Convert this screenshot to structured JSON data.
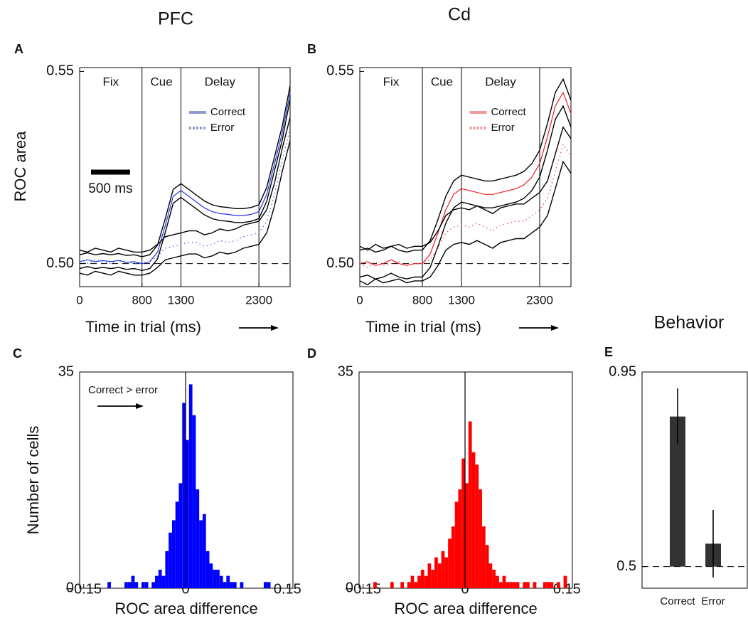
{
  "chart_data": [
    {
      "type": "line",
      "panel": "A",
      "title": "PFC",
      "xlabel": "Time in trial (ms)",
      "ylabel": "ROC area",
      "xlim": [
        0,
        2700
      ],
      "ylim": [
        0.494,
        0.551
      ],
      "xticks": [
        0,
        800,
        1300,
        2300
      ],
      "yticks": [
        {
          "value": 0.5,
          "label": "0.50"
        },
        0.55
      ],
      "reference_y": 0.5,
      "band_color": "#000000",
      "epochs": [
        {
          "label": "Fix",
          "start": 0,
          "end": 800
        },
        {
          "label": "Cue",
          "start": 800,
          "end": 1300
        },
        {
          "label": "Delay",
          "start": 1300,
          "end": 2300
        }
      ],
      "scale_bar": {
        "value": 500,
        "label": "500 ms"
      },
      "x": [
        0,
        100,
        200,
        300,
        400,
        500,
        600,
        700,
        800,
        900,
        1000,
        1100,
        1200,
        1300,
        1400,
        1500,
        1600,
        1700,
        1800,
        1900,
        2000,
        2100,
        2200,
        2300,
        2400,
        2500,
        2600,
        2700
      ],
      "series": [
        {
          "name": "Correct",
          "color": "#2233dd",
          "legend_color": "#8e9ccc",
          "dash": "solid",
          "values": [
            0.5005,
            0.501,
            0.5005,
            0.5008,
            0.5005,
            0.5008,
            0.5003,
            0.5005,
            0.5,
            0.5005,
            0.503,
            0.51,
            0.5175,
            0.519,
            0.5175,
            0.516,
            0.5145,
            0.5135,
            0.513,
            0.5128,
            0.5125,
            0.5125,
            0.5128,
            0.5135,
            0.518,
            0.526,
            0.534,
            0.5445
          ],
          "upper": [
            0.5023,
            0.5028,
            0.5023,
            0.5026,
            0.5023,
            0.5026,
            0.5021,
            0.5023,
            0.5018,
            0.5023,
            0.5048,
            0.5118,
            0.5193,
            0.5208,
            0.5193,
            0.5178,
            0.5163,
            0.5153,
            0.5148,
            0.5146,
            0.5143,
            0.5143,
            0.5146,
            0.5153,
            0.5198,
            0.5278,
            0.5358,
            0.5463
          ],
          "lower": [
            0.4987,
            0.4992,
            0.4987,
            0.499,
            0.4987,
            0.499,
            0.4985,
            0.4987,
            0.4982,
            0.4987,
            0.5012,
            0.5082,
            0.5157,
            0.5172,
            0.5157,
            0.5142,
            0.5127,
            0.5117,
            0.5112,
            0.511,
            0.5107,
            0.5107,
            0.511,
            0.5117,
            0.5162,
            0.5242,
            0.5322,
            0.5427
          ]
        },
        {
          "name": "Error",
          "color": "#5566ee",
          "legend_color": "#8e9ccc",
          "dash": "dotted",
          "values": [
            0.5005,
            0.5,
            0.501,
            0.5005,
            0.5,
            0.501,
            0.5005,
            0.5,
            0.5,
            0.5005,
            0.502,
            0.504,
            0.5045,
            0.505,
            0.5055,
            0.5055,
            0.5045,
            0.505,
            0.506,
            0.5055,
            0.506,
            0.507,
            0.5075,
            0.508,
            0.511,
            0.518,
            0.527,
            0.535
          ],
          "upper": [
            0.5035,
            0.503,
            0.504,
            0.5035,
            0.503,
            0.504,
            0.5035,
            0.503,
            0.503,
            0.5035,
            0.505,
            0.507,
            0.5075,
            0.508,
            0.5085,
            0.5085,
            0.5075,
            0.508,
            0.509,
            0.5085,
            0.509,
            0.51,
            0.5105,
            0.511,
            0.514,
            0.521,
            0.53,
            0.538
          ],
          "lower": [
            0.4975,
            0.497,
            0.498,
            0.4975,
            0.497,
            0.498,
            0.4975,
            0.497,
            0.497,
            0.4975,
            0.499,
            0.501,
            0.5015,
            0.502,
            0.5025,
            0.5025,
            0.5015,
            0.502,
            0.503,
            0.5025,
            0.503,
            0.504,
            0.5045,
            0.505,
            0.508,
            0.515,
            0.524,
            0.532
          ]
        }
      ]
    },
    {
      "type": "line",
      "panel": "B",
      "title": "Cd",
      "xlabel": "Time in trial (ms)",
      "xlim": [
        0,
        2700
      ],
      "ylim": [
        0.494,
        0.551
      ],
      "xticks": [
        0,
        800,
        1300,
        2300
      ],
      "yticks": [
        {
          "value": 0.5,
          "label": "0.50"
        },
        0.55
      ],
      "reference_y": 0.5,
      "band_color": "#000000",
      "epochs": [
        {
          "label": "Fix",
          "start": 0,
          "end": 800
        },
        {
          "label": "Cue",
          "start": 800,
          "end": 1300
        },
        {
          "label": "Delay",
          "start": 1300,
          "end": 2300
        }
      ],
      "x": [
        0,
        100,
        200,
        300,
        400,
        500,
        600,
        700,
        800,
        900,
        1000,
        1100,
        1200,
        1300,
        1400,
        1500,
        1600,
        1700,
        1800,
        1900,
        2000,
        2100,
        2200,
        2300,
        2400,
        2500,
        2600,
        2700
      ],
      "series": [
        {
          "name": "Correct",
          "color": "#ee1c24",
          "legend_color": "#f09a9a",
          "dash": "solid",
          "values": [
            0.5,
            0.5005,
            0.4995,
            0.5,
            0.501,
            0.5,
            0.4995,
            0.5,
            0.5,
            0.5025,
            0.508,
            0.514,
            0.518,
            0.5195,
            0.519,
            0.5185,
            0.518,
            0.518,
            0.5185,
            0.519,
            0.5195,
            0.5205,
            0.5225,
            0.526,
            0.533,
            0.541,
            0.5445,
            0.539
          ],
          "upper": [
            0.5035,
            0.504,
            0.503,
            0.5035,
            0.5045,
            0.5035,
            0.503,
            0.5035,
            0.5035,
            0.506,
            0.5115,
            0.5175,
            0.5215,
            0.523,
            0.5225,
            0.522,
            0.5215,
            0.5215,
            0.522,
            0.5225,
            0.523,
            0.524,
            0.526,
            0.5295,
            0.5365,
            0.5445,
            0.548,
            0.5425
          ],
          "lower": [
            0.4965,
            0.497,
            0.496,
            0.4965,
            0.4975,
            0.4965,
            0.496,
            0.4965,
            0.4965,
            0.499,
            0.5045,
            0.5105,
            0.5145,
            0.516,
            0.5155,
            0.515,
            0.5145,
            0.5145,
            0.515,
            0.5155,
            0.516,
            0.517,
            0.519,
            0.5225,
            0.5295,
            0.5375,
            0.541,
            0.5355
          ]
        },
        {
          "name": "Error",
          "color": "#f04a50",
          "legend_color": "#f09a9a",
          "dash": "dotted",
          "values": [
            0.5,
            0.499,
            0.5005,
            0.4995,
            0.5,
            0.5005,
            0.4995,
            0.5,
            0.5,
            0.501,
            0.504,
            0.508,
            0.5095,
            0.51,
            0.5095,
            0.5105,
            0.5095,
            0.5085,
            0.51,
            0.5105,
            0.511,
            0.511,
            0.5125,
            0.514,
            0.517,
            0.524,
            0.531,
            0.528
          ],
          "upper": [
            0.5045,
            0.5035,
            0.505,
            0.504,
            0.5045,
            0.505,
            0.504,
            0.5045,
            0.5045,
            0.5055,
            0.5085,
            0.5125,
            0.514,
            0.5145,
            0.514,
            0.515,
            0.514,
            0.513,
            0.5145,
            0.515,
            0.5155,
            0.5155,
            0.517,
            0.5185,
            0.5215,
            0.5285,
            0.5355,
            0.5325
          ],
          "lower": [
            0.4955,
            0.4945,
            0.496,
            0.495,
            0.4955,
            0.496,
            0.495,
            0.4955,
            0.4955,
            0.4965,
            0.4995,
            0.5035,
            0.505,
            0.5055,
            0.505,
            0.506,
            0.505,
            0.504,
            0.5055,
            0.506,
            0.5065,
            0.5065,
            0.508,
            0.5095,
            0.5125,
            0.5195,
            0.5265,
            0.5235
          ]
        }
      ]
    },
    {
      "type": "histogram",
      "panel": "C",
      "xlabel": "ROC area difference",
      "ylabel": "Number of cells",
      "color": "#0000ff",
      "annotation": "Correct > error",
      "reference_x": 0,
      "xlim": [
        -0.156,
        0.158
      ],
      "ylim": [
        0,
        35
      ],
      "xticks": [
        {
          "value": -0.15,
          "label": "−0.15"
        },
        0,
        0.15
      ],
      "yticks": [
        0,
        35
      ],
      "bins": [
        -0.15,
        -0.145,
        -0.14,
        -0.135,
        -0.13,
        -0.125,
        -0.12,
        -0.115,
        -0.11,
        -0.105,
        -0.1,
        -0.095,
        -0.09,
        -0.085,
        -0.08,
        -0.075,
        -0.07,
        -0.065,
        -0.06,
        -0.055,
        -0.05,
        -0.045,
        -0.04,
        -0.035,
        -0.03,
        -0.025,
        -0.02,
        -0.015,
        -0.01,
        -0.005,
        0,
        0.005,
        0.01,
        0.015,
        0.02,
        0.025,
        0.03,
        0.035,
        0.04,
        0.045,
        0.05,
        0.055,
        0.06,
        0.065,
        0.07,
        0.075,
        0.08,
        0.085,
        0.09,
        0.095,
        0.1,
        0.105,
        0.11,
        0.115,
        0.12,
        0.125,
        0.13,
        0.135,
        0.14,
        0.145,
        0.15
      ],
      "counts": [
        0,
        0,
        0,
        0,
        0,
        0,
        0,
        1,
        0,
        0,
        0,
        0,
        1,
        1,
        2,
        1,
        0,
        1,
        1,
        0,
        1,
        2,
        3,
        2,
        6,
        9,
        11,
        14,
        17,
        30,
        24,
        33,
        28,
        16,
        11,
        12,
        6,
        4,
        3,
        3,
        2,
        1,
        2,
        1,
        1,
        0,
        1,
        0,
        0,
        0,
        0,
        0,
        0,
        1,
        1,
        0,
        0,
        0,
        0,
        0
      ]
    },
    {
      "type": "histogram",
      "panel": "D",
      "xlabel": "ROC area difference",
      "color": "#ff0000",
      "reference_x": 0,
      "xlim": [
        -0.156,
        0.158
      ],
      "ylim": [
        0,
        35
      ],
      "xticks": [
        {
          "value": -0.15,
          "label": "−0.15"
        },
        0,
        0.15
      ],
      "yticks": [
        0,
        35
      ],
      "bins": [
        -0.15,
        -0.145,
        -0.14,
        -0.135,
        -0.13,
        -0.125,
        -0.12,
        -0.115,
        -0.11,
        -0.105,
        -0.1,
        -0.095,
        -0.09,
        -0.085,
        -0.08,
        -0.075,
        -0.07,
        -0.065,
        -0.06,
        -0.055,
        -0.05,
        -0.045,
        -0.04,
        -0.035,
        -0.03,
        -0.025,
        -0.02,
        -0.015,
        -0.01,
        -0.005,
        0,
        0.005,
        0.01,
        0.015,
        0.02,
        0.025,
        0.03,
        0.035,
        0.04,
        0.045,
        0.05,
        0.055,
        0.06,
        0.065,
        0.07,
        0.075,
        0.08,
        0.085,
        0.09,
        0.095,
        0.1,
        0.105,
        0.11,
        0.115,
        0.12,
        0.125,
        0.13,
        0.135,
        0.14,
        0.145,
        0.15
      ],
      "counts": [
        0,
        0,
        0,
        1,
        0,
        0,
        0,
        0,
        1,
        0,
        0,
        1,
        0,
        1,
        2,
        1,
        2,
        3,
        2,
        4,
        3,
        5,
        4,
        6,
        5,
        8,
        10,
        14,
        16,
        21,
        17,
        27,
        22,
        20,
        16,
        10,
        7,
        4,
        3,
        2,
        1,
        2,
        1,
        1,
        1,
        1,
        0,
        1,
        1,
        0,
        1,
        0,
        0,
        1,
        1,
        1,
        0,
        1,
        0,
        2
      ]
    },
    {
      "type": "bar",
      "panel": "E",
      "title": "Behavior",
      "color": "#333333",
      "categories": [
        "Correct",
        "Error"
      ],
      "values": [
        0.847,
        0.553
      ],
      "errors": [
        0.065,
        0.078
      ],
      "baseline": 0.5,
      "ylim": [
        0.45,
        0.95
      ],
      "yticks": [
        0.5,
        0.95
      ]
    }
  ]
}
